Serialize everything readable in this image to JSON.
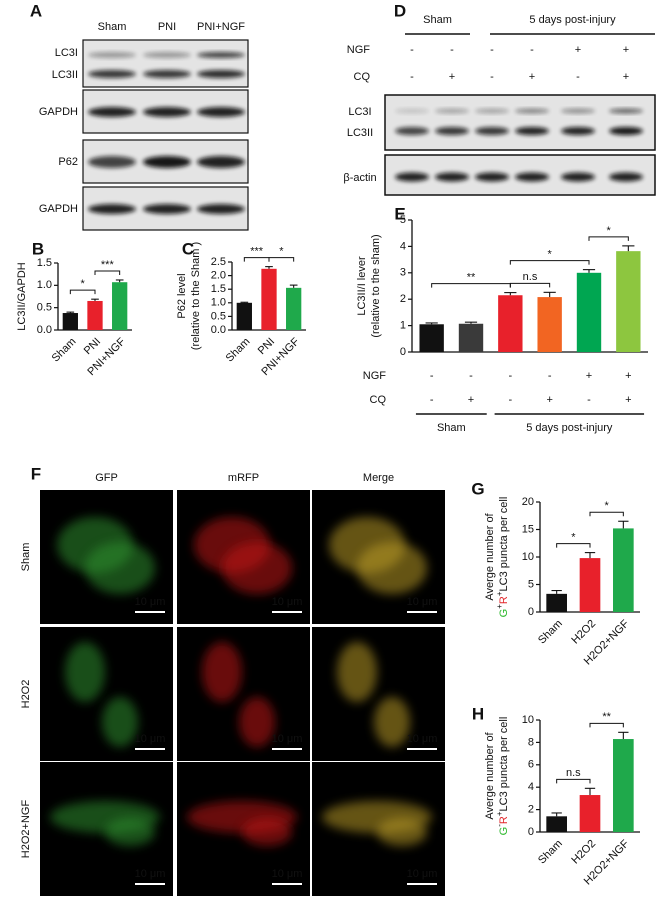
{
  "blot_a": {
    "label": "A",
    "lanes": [
      "Sham",
      "PNI",
      "PNI+NGF"
    ],
    "rows": [
      "LC3I",
      "LC3II",
      "GAPDH",
      "P62",
      "GAPDH"
    ]
  },
  "blot_d": {
    "label": "D",
    "groups": [
      "Sham",
      "5 days post-injury"
    ],
    "conditions": [
      {
        "name": "NGF",
        "values": [
          "-",
          "-",
          "-",
          "-",
          "+",
          "+"
        ]
      },
      {
        "name": "CQ",
        "values": [
          "-",
          "+",
          "-",
          "+",
          "-",
          "+"
        ]
      }
    ],
    "rows": [
      "LC3I",
      "LC3II",
      "β-actin"
    ]
  },
  "microscopy": {
    "label": "F",
    "columns": [
      "GFP",
      "mRFP",
      "Merge"
    ],
    "rows": [
      "Sham",
      "H2O2",
      "H2O2+NGF"
    ],
    "scale_bar": "10 μm"
  },
  "chart_data": [
    {
      "type": "bar",
      "panel": "B",
      "ylabel": [
        [
          {
            "text": "LC3II/GAPDH"
          }
        ]
      ],
      "categories": [
        "Sham",
        "PNI",
        "PNI+NGF"
      ],
      "values": [
        0.38,
        0.65,
        1.07
      ],
      "errors": [
        0.02,
        0.04,
        0.05
      ],
      "colors": [
        "#111111",
        "#e8212b",
        "#1fa94b"
      ],
      "ylim": [
        0,
        1.5
      ],
      "yticks": [
        {
          "value": 0,
          "label": "0.0"
        },
        0.5,
        {
          "value": 1,
          "label": "1.0"
        },
        1.5
      ],
      "significance": [
        {
          "from": 0,
          "to": 1,
          "label": "*"
        },
        {
          "from": 1,
          "to": 2,
          "label": "***"
        }
      ]
    },
    {
      "type": "bar",
      "panel": "C",
      "ylabel": [
        [
          {
            "text": "P62 level"
          }
        ],
        [
          {
            "text": "(relative to the Sham )"
          }
        ]
      ],
      "categories": [
        "Sham",
        "PNI",
        "PNI+NGF"
      ],
      "values": [
        1.0,
        2.25,
        1.55
      ],
      "errors": [
        0.02,
        0.08,
        0.1
      ],
      "colors": [
        "#111111",
        "#e8212b",
        "#1fa94b"
      ],
      "ylim": [
        0,
        2.5
      ],
      "yticks": [
        {
          "value": 0,
          "label": "0.0"
        },
        0.5,
        {
          "value": 1,
          "label": "1.0"
        },
        1.5,
        {
          "value": 2,
          "label": "2.0"
        },
        2.5
      ],
      "significance": [
        {
          "from": 0,
          "to": 1,
          "label": "***"
        },
        {
          "from": 1,
          "to": 2,
          "label": "*"
        }
      ]
    },
    {
      "type": "bar",
      "panel": "E",
      "ylabel": [
        [
          {
            "text": "LC3II/I lever"
          }
        ],
        [
          {
            "text": "(relative to the sham)"
          }
        ]
      ],
      "values": [
        1.05,
        1.07,
        2.15,
        2.08,
        3.0,
        3.82
      ],
      "errors": [
        0.05,
        0.06,
        0.1,
        0.18,
        0.12,
        0.2
      ],
      "colors": [
        "#111111",
        "#3a3a3a",
        "#e8212b",
        "#f26522",
        "#00a651",
        "#8dc63f"
      ],
      "ylim": [
        0,
        5
      ],
      "yticks": [
        0,
        1,
        2,
        3,
        4,
        5
      ],
      "significance": [
        {
          "from": 0,
          "to": 2,
          "label": "**"
        },
        {
          "from": 2,
          "to": 3,
          "label": "n.s"
        },
        {
          "from": 2,
          "to": 4,
          "label": "*"
        },
        {
          "from": 4,
          "to": 5,
          "label": "*"
        }
      ],
      "conditions": [
        {
          "name": "NGF",
          "values": [
            "-",
            "-",
            "-",
            "-",
            "+",
            "+"
          ]
        },
        {
          "name": "CQ",
          "values": [
            "-",
            "+",
            "-",
            "+",
            "-",
            "+"
          ]
        }
      ],
      "groups": [
        "Sham",
        "5 days post-injury"
      ]
    },
    {
      "type": "bar",
      "panel": "G",
      "ylabel": [
        [
          {
            "text": "Averge number of"
          }
        ],
        [
          {
            "text": "G",
            "color": "#2db92d"
          },
          {
            "text": "+",
            "sup": true
          },
          {
            "text": "R",
            "color": "#e3262a"
          },
          {
            "text": "+",
            "sup": true
          },
          {
            "text": "LC3 puncta per cell"
          }
        ]
      ],
      "categories": [
        "Sham",
        "H2O2",
        "H2O2+NGF"
      ],
      "values": [
        3.3,
        9.8,
        15.2
      ],
      "errors": [
        0.6,
        1.0,
        1.3
      ],
      "colors": [
        "#111111",
        "#e8212b",
        "#1fa94b"
      ],
      "ylim": [
        0,
        20
      ],
      "yticks": [
        0,
        5,
        10,
        15,
        20
      ],
      "significance": [
        {
          "from": 0,
          "to": 1,
          "label": "*"
        },
        {
          "from": 1,
          "to": 2,
          "label": "*"
        }
      ]
    },
    {
      "type": "bar",
      "panel": "H",
      "ylabel": [
        [
          {
            "text": "Averge number of"
          }
        ],
        [
          {
            "text": "G",
            "color": "#2db92d"
          },
          {
            "text": "-",
            "sup": true
          },
          {
            "text": "R",
            "color": "#e3262a"
          },
          {
            "text": "+",
            "sup": true
          },
          {
            "text": "LC3 puncta per cell"
          }
        ]
      ],
      "categories": [
        "Sham",
        "H2O2",
        "H2O2+NGF"
      ],
      "values": [
        1.4,
        3.3,
        8.3
      ],
      "errors": [
        0.3,
        0.6,
        0.6
      ],
      "colors": [
        "#111111",
        "#e8212b",
        "#1fa94b"
      ],
      "ylim": [
        0,
        10
      ],
      "yticks": [
        0,
        2,
        4,
        6,
        8,
        10
      ],
      "significance": [
        {
          "from": 0,
          "to": 1,
          "label": "n.s"
        },
        {
          "from": 1,
          "to": 2,
          "label": "**"
        }
      ]
    }
  ]
}
